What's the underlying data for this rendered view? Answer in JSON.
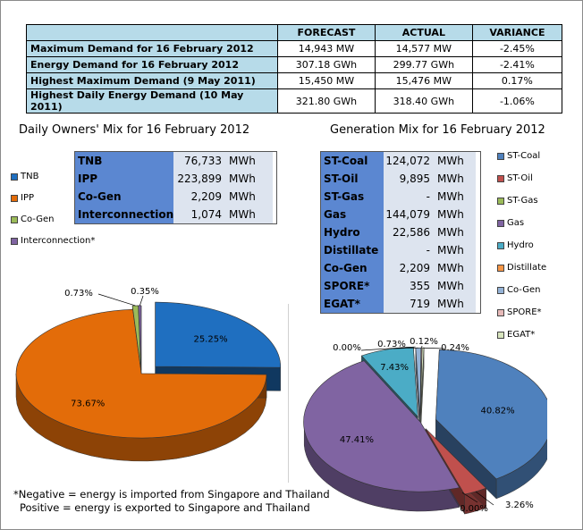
{
  "summary": {
    "headers": [
      "FORECAST",
      "ACTUAL",
      "VARIANCE"
    ],
    "rows": [
      {
        "label": "Maximum Demand for 16 February 2012",
        "forecast": "14,943",
        "forecast_unit": "MW",
        "actual": "14,577",
        "actual_unit": "MW",
        "variance": "-2.45%"
      },
      {
        "label": "Energy Demand for 16 February 2012",
        "forecast": "307.18",
        "forecast_unit": "GWh",
        "actual": "299.77",
        "actual_unit": "GWh",
        "variance": "-2.41%"
      },
      {
        "label": "Highest Maximum Demand (9 May 2011)",
        "forecast": "15,450",
        "forecast_unit": "MW",
        "actual": "15,476",
        "actual_unit": "MW",
        "variance": "0.17%"
      },
      {
        "label": "Highest Daily Energy Demand (10 May 2011)",
        "forecast": "321.80",
        "forecast_unit": "GWh",
        "actual": "318.40",
        "actual_unit": "GWh",
        "variance": "-1.06%"
      }
    ]
  },
  "owners": {
    "title": "Daily Owners' Mix for 16 February 2012",
    "unit": "MWh",
    "rows": [
      {
        "label": "TNB",
        "value": "76,733"
      },
      {
        "label": "IPP",
        "value": "223,899"
      },
      {
        "label": "Co-Gen",
        "value": "2,209"
      },
      {
        "label": "Interconnection*",
        "value": "1,074"
      }
    ],
    "legend": [
      "TNB",
      "IPP",
      "Co-Gen",
      "Interconnection*"
    ]
  },
  "generation": {
    "title": "Generation Mix for 16 February 2012",
    "unit": "MWh",
    "rows": [
      {
        "label": "ST-Coal",
        "value": "124,072"
      },
      {
        "label": "ST-Oil",
        "value": "9,895"
      },
      {
        "label": "ST-Gas",
        "value": "-"
      },
      {
        "label": "Gas",
        "value": "144,079"
      },
      {
        "label": "Hydro",
        "value": "22,586"
      },
      {
        "label": "Distillate",
        "value": "-"
      },
      {
        "label": "Co-Gen",
        "value": "2,209"
      },
      {
        "label": "SPORE*",
        "value": "355"
      },
      {
        "label": "EGAT*",
        "value": "719"
      }
    ],
    "legend": [
      "ST-Coal",
      "ST-Oil",
      "ST-Gas",
      "Gas",
      "Hydro",
      "Distillate",
      "Co-Gen",
      "SPORE*",
      "EGAT*"
    ]
  },
  "note": {
    "line1": "*Negative = energy is imported from Singapore and Thailand",
    "line2": "Positive = energy is exported to Singapore and Thailand"
  },
  "chart_data": [
    {
      "type": "pie",
      "title": "Daily Owners' Mix for 16 February 2012",
      "categories": [
        "TNB",
        "IPP",
        "Co-Gen",
        "Interconnection*"
      ],
      "values": [
        25.25,
        73.67,
        0.73,
        0.35
      ],
      "labels": [
        "25.25%",
        "73.67%",
        "0.73%",
        "0.35%"
      ],
      "colors": [
        "#1f6fc0",
        "#e36c09",
        "#9bbb59",
        "#8064a2"
      ],
      "legend_position": "left"
    },
    {
      "type": "pie",
      "title": "Generation Mix for 16 February 2012",
      "categories": [
        "ST-Coal",
        "ST-Oil",
        "ST-Gas",
        "Gas",
        "Hydro",
        "Distillate",
        "Co-Gen",
        "SPORE*",
        "EGAT*"
      ],
      "values": [
        40.82,
        3.26,
        0.0,
        47.41,
        7.43,
        0.0,
        0.73,
        0.12,
        0.24
      ],
      "labels": [
        "40.82%",
        "3.26%",
        "0.00%",
        "47.41%",
        "7.43%",
        "0.00%",
        "0.73%",
        "0.12%",
        "0.24%"
      ],
      "colors": [
        "#4f81bd",
        "#c0504d",
        "#9bbb59",
        "#8064a2",
        "#4bacc6",
        "#f79646",
        "#95b3d7",
        "#e6b9b8",
        "#d7e4bd"
      ],
      "legend_position": "right"
    }
  ],
  "colors": {
    "header_bg": "#b7dbe9",
    "box_label_bg": "#5b87d1",
    "box_value_bg": "#dde4ef"
  }
}
